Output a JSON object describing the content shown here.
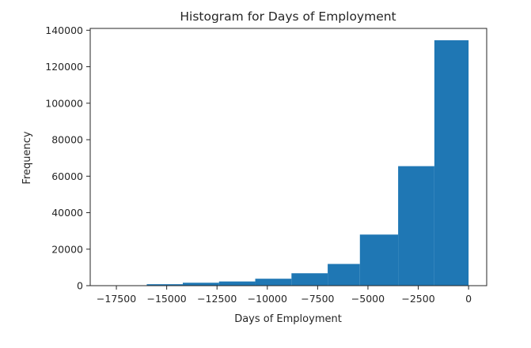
{
  "chart_data": {
    "type": "bar",
    "title": "Histogram for Days of Employment",
    "xlabel": "Days of Employment",
    "ylabel": "Frequency",
    "bin_edges": [
      -17900,
      -15990,
      -14200,
      -12400,
      -10600,
      -8800,
      -7000,
      -5400,
      -3500,
      -1700,
      0
    ],
    "values": [
      50,
      800,
      1600,
      2300,
      3800,
      6800,
      11900,
      28000,
      65500,
      134500
    ],
    "xlim": [
      -18800,
      900
    ],
    "ylim": [
      0,
      141000
    ],
    "xticks": [
      -17500,
      -15000,
      -12500,
      -10000,
      -7500,
      -5000,
      -2500,
      0
    ],
    "xtick_labels": [
      "−17500",
      "−15000",
      "−12500",
      "−10000",
      "−7500",
      "−5000",
      "−2500",
      "0"
    ],
    "yticks": [
      0,
      20000,
      40000,
      60000,
      80000,
      100000,
      120000,
      140000
    ],
    "ytick_labels": [
      "0",
      "20000",
      "40000",
      "60000",
      "80000",
      "100000",
      "120000",
      "140000"
    ],
    "grid": false,
    "colors": {
      "bar": "#1f77b4",
      "axis": "#262626"
    }
  }
}
